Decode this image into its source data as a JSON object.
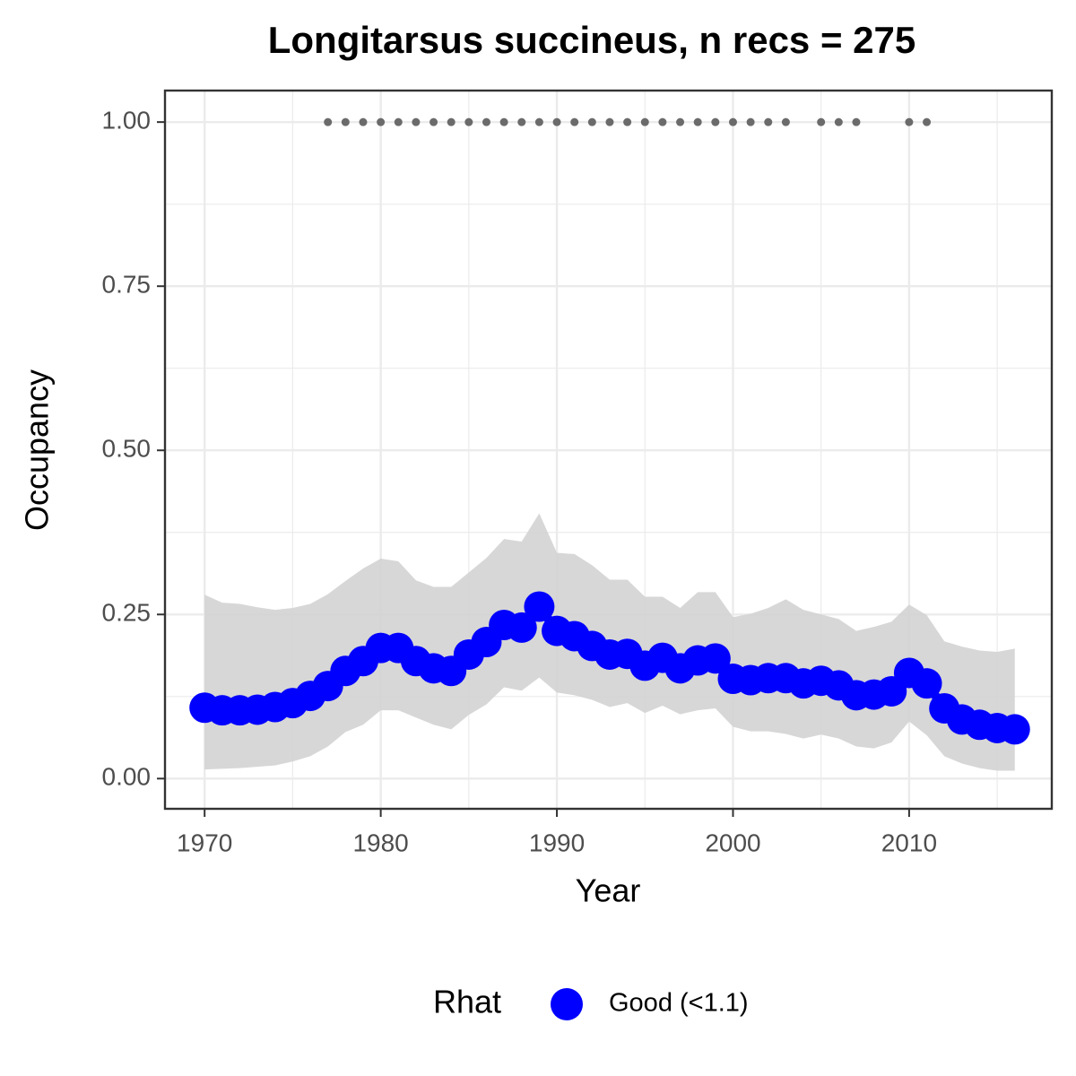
{
  "chart_data": {
    "type": "line",
    "title": "Longitarsus succineus, n recs = 275",
    "x_label": "Year",
    "y_label": "Occupancy",
    "x": [
      1970,
      1971,
      1972,
      1973,
      1974,
      1975,
      1976,
      1977,
      1978,
      1979,
      1980,
      1981,
      1982,
      1983,
      1984,
      1985,
      1986,
      1987,
      1988,
      1989,
      1990,
      1991,
      1992,
      1993,
      1994,
      1995,
      1996,
      1997,
      1998,
      1999,
      2000,
      2001,
      2002,
      2003,
      2004,
      2005,
      2006,
      2007,
      2008,
      2009,
      2010,
      2011,
      2012,
      2013,
      2014,
      2015,
      2016
    ],
    "series": [
      {
        "name": "Good (<1.1)",
        "color": "#0000ff",
        "values": [
          0.108,
          0.104,
          0.104,
          0.105,
          0.109,
          0.115,
          0.126,
          0.141,
          0.164,
          0.179,
          0.199,
          0.199,
          0.179,
          0.168,
          0.164,
          0.189,
          0.208,
          0.234,
          0.23,
          0.262,
          0.225,
          0.217,
          0.202,
          0.189,
          0.19,
          0.172,
          0.184,
          0.168,
          0.18,
          0.183,
          0.152,
          0.15,
          0.153,
          0.153,
          0.145,
          0.149,
          0.142,
          0.127,
          0.128,
          0.133,
          0.161,
          0.145,
          0.107,
          0.09,
          0.082,
          0.077,
          0.075
        ]
      }
    ],
    "band": {
      "color": "#d3d3d3",
      "upper": [
        0.28,
        0.268,
        0.266,
        0.261,
        0.257,
        0.26,
        0.266,
        0.281,
        0.301,
        0.32,
        0.335,
        0.331,
        0.302,
        0.292,
        0.292,
        0.314,
        0.336,
        0.365,
        0.361,
        0.404,
        0.344,
        0.342,
        0.325,
        0.303,
        0.303,
        0.277,
        0.277,
        0.26,
        0.284,
        0.284,
        0.246,
        0.251,
        0.26,
        0.273,
        0.257,
        0.25,
        0.243,
        0.225,
        0.231,
        0.239,
        0.265,
        0.249,
        0.209,
        0.201,
        0.195,
        0.193,
        0.198
      ],
      "lower": [
        0.014,
        0.015,
        0.016,
        0.018,
        0.02,
        0.026,
        0.034,
        0.049,
        0.071,
        0.082,
        0.104,
        0.104,
        0.093,
        0.082,
        0.075,
        0.097,
        0.113,
        0.139,
        0.134,
        0.154,
        0.131,
        0.127,
        0.12,
        0.109,
        0.115,
        0.1,
        0.111,
        0.098,
        0.104,
        0.107,
        0.079,
        0.072,
        0.072,
        0.068,
        0.061,
        0.067,
        0.061,
        0.049,
        0.046,
        0.055,
        0.087,
        0.066,
        0.034,
        0.023,
        0.016,
        0.012,
        0.012
      ]
    },
    "records": {
      "color": "#6b6b6b",
      "x": [
        1977,
        1978,
        1979,
        1980,
        1981,
        1982,
        1983,
        1984,
        1985,
        1986,
        1987,
        1988,
        1989,
        1990,
        1991,
        1992,
        1993,
        1994,
        1995,
        1996,
        1997,
        1998,
        1999,
        2000,
        2001,
        2002,
        2003,
        2005,
        2006,
        2007,
        2010,
        2011
      ],
      "values": [
        1,
        1,
        1,
        1,
        1,
        1,
        1,
        1,
        1,
        1,
        1,
        1,
        1,
        1,
        1,
        1,
        1,
        1,
        1,
        1,
        1,
        1,
        1,
        1,
        1,
        1,
        1,
        1,
        1,
        1,
        1,
        1
      ]
    },
    "xlim": [
      1967.75,
      2018.1
    ],
    "ylim": [
      -0.046,
      1.048
    ],
    "xticks": [
      1970,
      1980,
      1990,
      2000,
      2010
    ],
    "yticks": [
      {
        "value": 0,
        "label": "0.00"
      },
      {
        "value": 0.25,
        "label": "0.25"
      },
      {
        "value": 0.5,
        "label": "0.50"
      },
      {
        "value": 0.75,
        "label": "0.75"
      },
      {
        "value": 1,
        "label": "1.00"
      }
    ],
    "grid": true,
    "legend": {
      "title": "Rhat",
      "position": "bottom"
    }
  }
}
